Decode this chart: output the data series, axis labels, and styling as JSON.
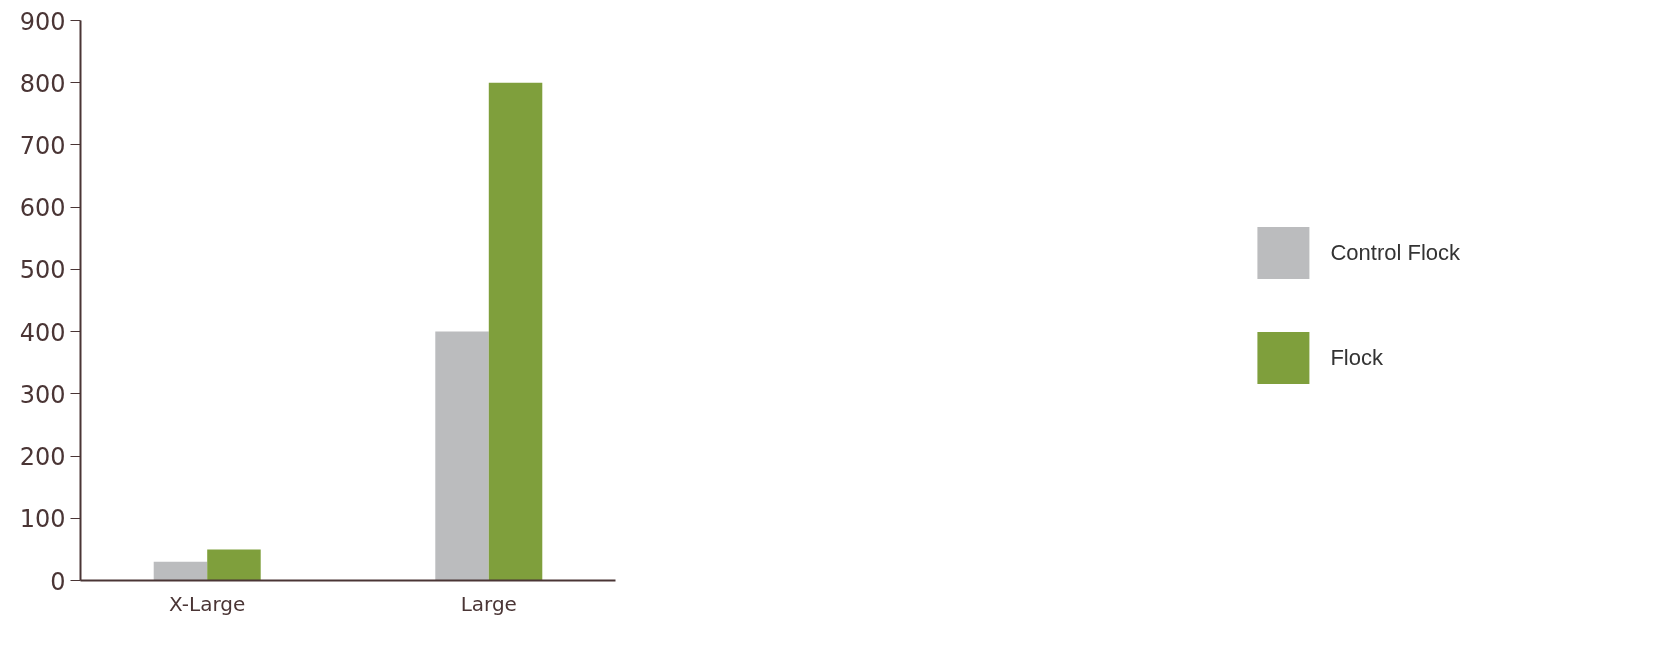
{
  "chart_data": {
    "type": "bar",
    "categories": [
      "X-Large",
      "Large"
    ],
    "series": [
      {
        "name": "Control Flock",
        "color": "#bbbcbe",
        "values": [
          30,
          400
        ]
      },
      {
        "name": "Flock",
        "color": "#7f9f3c",
        "values": [
          50,
          800
        ]
      }
    ],
    "ylim": [
      0,
      900
    ],
    "yticks": [
      0,
      100,
      200,
      300,
      400,
      500,
      600,
      700,
      800,
      900
    ],
    "grid": false,
    "legend": "right"
  }
}
